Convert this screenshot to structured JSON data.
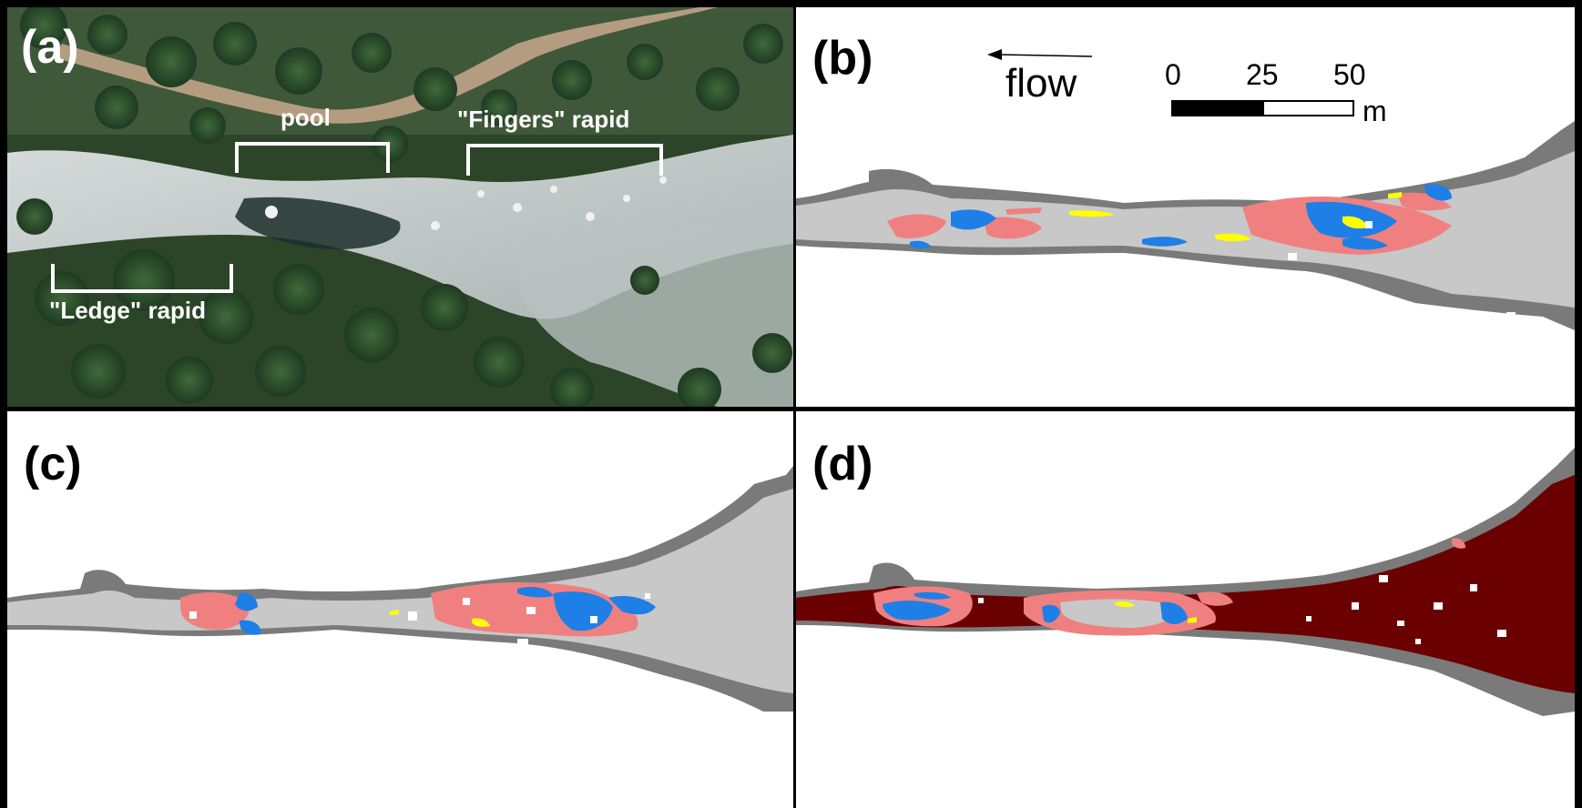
{
  "panels": {
    "a": {
      "label": "(a)",
      "annotations": {
        "pool": "pool",
        "fingers": "\"Fingers\" rapid",
        "ledge": "\"Ledge\" rapid"
      }
    },
    "b": {
      "label": "(b)"
    },
    "c": {
      "label": "(c)"
    },
    "d": {
      "label": "(d)"
    }
  },
  "flow_label": "flow",
  "scale_bar": {
    "ticks": [
      "0",
      "25",
      "50"
    ],
    "unit": "m"
  },
  "colors": {
    "channel_light_gray": "#c8c8c8",
    "bank_dark_gray": "#7a7a7a",
    "salmon": "#f08080",
    "blue": "#1e7fe6",
    "yellow": "#ffff00",
    "dark_red": "#6b0000",
    "forest": "#2f4a2a",
    "whitewater": "#c9d0cf"
  }
}
